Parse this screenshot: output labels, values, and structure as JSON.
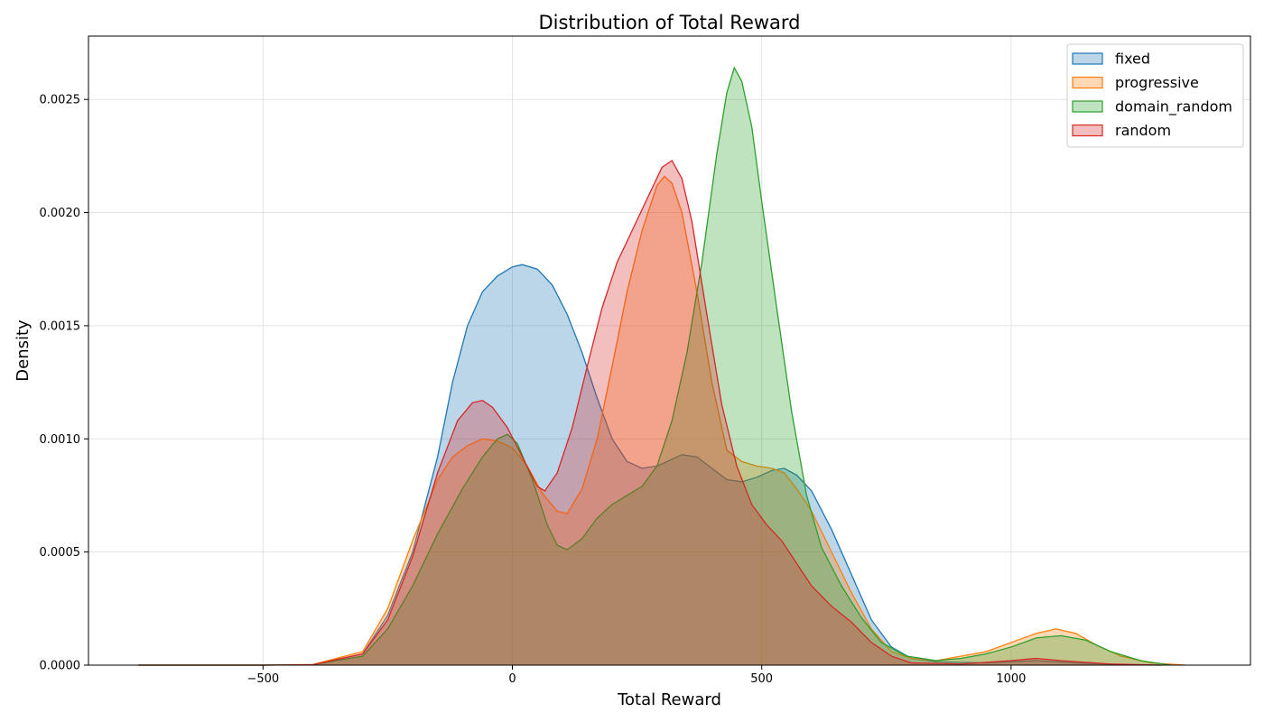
{
  "chart_data": {
    "type": "area",
    "title": "Distribution of Total Reward",
    "xlabel": "Total Reward",
    "ylabel": "Density",
    "xlim": [
      -850,
      1480
    ],
    "ylim": [
      0,
      0.00278
    ],
    "x_ticks": [
      -500,
      0,
      500,
      1000
    ],
    "x_tick_labels": [
      "−500",
      "0",
      "500",
      "1000"
    ],
    "y_ticks": [
      0,
      0.0005,
      0.001,
      0.0015,
      0.002,
      0.0025
    ],
    "y_tick_labels": [
      "0.0000",
      "0.0005",
      "0.0010",
      "0.0015",
      "0.0020",
      "0.0025"
    ],
    "grid": true,
    "legend_position": "top-right",
    "series": [
      {
        "name": "fixed",
        "color": "#1f77b4",
        "points": [
          [
            -750,
            0
          ],
          [
            -500,
            0
          ],
          [
            -400,
            2e-06
          ],
          [
            -300,
            5e-05
          ],
          [
            -250,
            0.00022
          ],
          [
            -200,
            0.0005
          ],
          [
            -150,
            0.00092
          ],
          [
            -120,
            0.00125
          ],
          [
            -90,
            0.0015
          ],
          [
            -60,
            0.00165
          ],
          [
            -30,
            0.00172
          ],
          [
            0,
            0.00176
          ],
          [
            20,
            0.00177
          ],
          [
            50,
            0.00175
          ],
          [
            80,
            0.00168
          ],
          [
            110,
            0.00155
          ],
          [
            140,
            0.00138
          ],
          [
            170,
            0.00118
          ],
          [
            200,
            0.001
          ],
          [
            230,
            0.0009
          ],
          [
            260,
            0.00087
          ],
          [
            290,
            0.00088
          ],
          [
            320,
            0.00091
          ],
          [
            340,
            0.00093
          ],
          [
            370,
            0.00092
          ],
          [
            400,
            0.00087
          ],
          [
            430,
            0.00082
          ],
          [
            460,
            0.00081
          ],
          [
            490,
            0.00083
          ],
          [
            520,
            0.00086
          ],
          [
            545,
            0.00087
          ],
          [
            570,
            0.00084
          ],
          [
            600,
            0.00077
          ],
          [
            640,
            0.0006
          ],
          [
            680,
            0.0004
          ],
          [
            720,
            0.0002
          ],
          [
            760,
            8e-05
          ],
          [
            800,
            3e-05
          ],
          [
            850,
            1.5e-05
          ],
          [
            950,
            1e-05
          ],
          [
            1050,
            2e-05
          ],
          [
            1150,
            8e-06
          ],
          [
            1250,
            1e-06
          ],
          [
            1300,
            0
          ]
        ]
      },
      {
        "name": "progressive",
        "color": "#ff7f0e",
        "points": [
          [
            -750,
            0
          ],
          [
            -500,
            0
          ],
          [
            -400,
            3e-06
          ],
          [
            -300,
            6e-05
          ],
          [
            -250,
            0.00025
          ],
          [
            -200,
            0.00055
          ],
          [
            -150,
            0.00082
          ],
          [
            -120,
            0.00092
          ],
          [
            -90,
            0.00097
          ],
          [
            -60,
            0.001
          ],
          [
            -30,
            0.00099
          ],
          [
            0,
            0.00096
          ],
          [
            30,
            0.00088
          ],
          [
            60,
            0.00076
          ],
          [
            90,
            0.00068
          ],
          [
            110,
            0.00067
          ],
          [
            140,
            0.00078
          ],
          [
            170,
            0.001
          ],
          [
            200,
            0.00132
          ],
          [
            230,
            0.00165
          ],
          [
            260,
            0.00192
          ],
          [
            290,
            0.00212
          ],
          [
            305,
            0.00216
          ],
          [
            320,
            0.00213
          ],
          [
            340,
            0.002
          ],
          [
            370,
            0.00165
          ],
          [
            400,
            0.00125
          ],
          [
            430,
            0.00095
          ],
          [
            460,
            0.0009
          ],
          [
            490,
            0.00088
          ],
          [
            520,
            0.00087
          ],
          [
            545,
            0.00085
          ],
          [
            570,
            0.00078
          ],
          [
            600,
            0.00068
          ],
          [
            640,
            0.0005
          ],
          [
            680,
            0.00032
          ],
          [
            720,
            0.00016
          ],
          [
            760,
            6e-05
          ],
          [
            800,
            3e-05
          ],
          [
            850,
            2e-05
          ],
          [
            900,
            4e-05
          ],
          [
            950,
            6e-05
          ],
          [
            1000,
            0.0001
          ],
          [
            1050,
            0.00014
          ],
          [
            1090,
            0.00016
          ],
          [
            1130,
            0.00014
          ],
          [
            1170,
            9e-05
          ],
          [
            1220,
            4e-05
          ],
          [
            1280,
            1e-05
          ],
          [
            1350,
            0
          ]
        ]
      },
      {
        "name": "domain_random",
        "color": "#2ca02c",
        "points": [
          [
            -750,
            0
          ],
          [
            -500,
            0
          ],
          [
            -400,
            2e-06
          ],
          [
            -300,
            4e-05
          ],
          [
            -250,
            0.00016
          ],
          [
            -200,
            0.00035
          ],
          [
            -150,
            0.00058
          ],
          [
            -100,
            0.00078
          ],
          [
            -60,
            0.00092
          ],
          [
            -30,
            0.001
          ],
          [
            -10,
            0.00102
          ],
          [
            10,
            0.00098
          ],
          [
            40,
            0.00082
          ],
          [
            70,
            0.00062
          ],
          [
            90,
            0.00053
          ],
          [
            110,
            0.00051
          ],
          [
            140,
            0.00056
          ],
          [
            170,
            0.00065
          ],
          [
            200,
            0.00071
          ],
          [
            230,
            0.00075
          ],
          [
            260,
            0.00079
          ],
          [
            290,
            0.00088
          ],
          [
            320,
            0.00108
          ],
          [
            350,
            0.00138
          ],
          [
            380,
            0.00178
          ],
          [
            410,
            0.00226
          ],
          [
            430,
            0.00253
          ],
          [
            445,
            0.00264
          ],
          [
            460,
            0.00258
          ],
          [
            480,
            0.00238
          ],
          [
            500,
            0.00205
          ],
          [
            530,
            0.00158
          ],
          [
            560,
            0.00112
          ],
          [
            590,
            0.00075
          ],
          [
            620,
            0.00052
          ],
          [
            660,
            0.00035
          ],
          [
            700,
            0.00021
          ],
          [
            740,
            0.0001
          ],
          [
            790,
            4e-05
          ],
          [
            850,
            2e-05
          ],
          [
            900,
            3e-05
          ],
          [
            950,
            5e-05
          ],
          [
            1000,
            8e-05
          ],
          [
            1050,
            0.00012
          ],
          [
            1100,
            0.00013
          ],
          [
            1150,
            0.00011
          ],
          [
            1200,
            6e-05
          ],
          [
            1260,
            2e-05
          ],
          [
            1320,
            0
          ]
        ]
      },
      {
        "name": "random",
        "color": "#d62728",
        "points": [
          [
            -750,
            0
          ],
          [
            -500,
            0
          ],
          [
            -400,
            2e-06
          ],
          [
            -300,
            5e-05
          ],
          [
            -250,
            0.0002
          ],
          [
            -200,
            0.00048
          ],
          [
            -150,
            0.00085
          ],
          [
            -110,
            0.00108
          ],
          [
            -80,
            0.00116
          ],
          [
            -60,
            0.00117
          ],
          [
            -40,
            0.00114
          ],
          [
            -10,
            0.00105
          ],
          [
            20,
            0.00092
          ],
          [
            50,
            0.00079
          ],
          [
            65,
            0.00077
          ],
          [
            90,
            0.00085
          ],
          [
            120,
            0.00105
          ],
          [
            150,
            0.00132
          ],
          [
            180,
            0.00158
          ],
          [
            210,
            0.00178
          ],
          [
            240,
            0.00192
          ],
          [
            270,
            0.00206
          ],
          [
            300,
            0.0022
          ],
          [
            320,
            0.00223
          ],
          [
            340,
            0.00215
          ],
          [
            360,
            0.00196
          ],
          [
            390,
            0.00155
          ],
          [
            420,
            0.00115
          ],
          [
            450,
            0.00088
          ],
          [
            480,
            0.00071
          ],
          [
            510,
            0.00062
          ],
          [
            540,
            0.00055
          ],
          [
            570,
            0.00045
          ],
          [
            600,
            0.00035
          ],
          [
            640,
            0.00026
          ],
          [
            680,
            0.00019
          ],
          [
            720,
            0.0001
          ],
          [
            760,
            4e-05
          ],
          [
            800,
            1e-05
          ],
          [
            900,
            5e-06
          ],
          [
            1000,
            2e-05
          ],
          [
            1050,
            3e-05
          ],
          [
            1100,
            2e-05
          ],
          [
            1200,
            5e-06
          ],
          [
            1300,
            0
          ]
        ]
      }
    ]
  }
}
